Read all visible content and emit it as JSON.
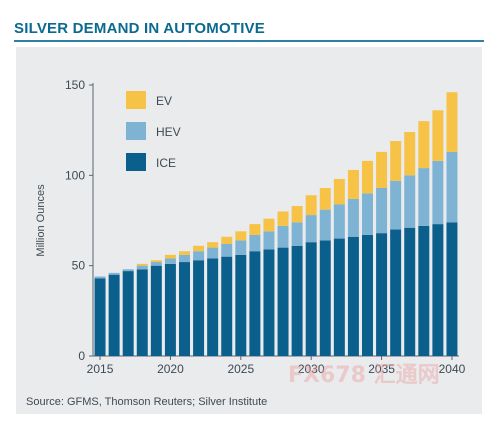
{
  "title": "SILVER DEMAND IN AUTOMOTIVE",
  "source": "Source: GFMS, Thomson Reuters; Silver Institute",
  "watermark": "FX678 汇通网",
  "colors": {
    "title": "#0b6a8f",
    "panel_bg": "#e9ebed",
    "ICE": "#0b5f8c",
    "HEV": "#7fb3d3",
    "EV": "#f6c347",
    "axis": "#5a6670"
  },
  "chart_data": {
    "type": "bar",
    "stacked": true,
    "title": "SILVER DEMAND IN AUTOMOTIVE",
    "xlabel": "",
    "ylabel": "Million Ounces",
    "ylim": [
      0,
      150
    ],
    "yticks": [
      0,
      50,
      100,
      150
    ],
    "xtick_labels": [
      "2015",
      "2020",
      "2025",
      "2030",
      "2035",
      "2040"
    ],
    "categories": [
      "2015",
      "2016",
      "2017",
      "2018",
      "2019",
      "2020",
      "2021",
      "2022",
      "2023",
      "2024",
      "2025",
      "2026",
      "2027",
      "2028",
      "2029",
      "2030",
      "2031",
      "2032",
      "2033",
      "2034",
      "2035",
      "2036",
      "2037",
      "2038",
      "2039",
      "2040"
    ],
    "series": [
      {
        "name": "ICE",
        "values": [
          43,
          45,
          47,
          48,
          50,
          51,
          52,
          53,
          54,
          55,
          56,
          58,
          59,
          60,
          61,
          63,
          64,
          65,
          66,
          67,
          68,
          70,
          71,
          72,
          73,
          74
        ]
      },
      {
        "name": "HEV",
        "values": [
          1,
          1,
          1,
          2,
          2,
          3,
          4,
          5,
          6,
          7,
          8,
          9,
          10,
          12,
          13,
          15,
          17,
          19,
          21,
          23,
          25,
          27,
          29,
          32,
          35,
          39
        ]
      },
      {
        "name": "EV",
        "values": [
          0,
          0,
          0,
          1,
          1,
          2,
          2,
          3,
          3,
          4,
          5,
          6,
          7,
          8,
          9,
          11,
          12,
          14,
          16,
          18,
          20,
          22,
          24,
          26,
          28,
          33
        ]
      }
    ],
    "legend": [
      "EV",
      "HEV",
      "ICE"
    ],
    "legend_position": "top-left",
    "grid": false
  }
}
